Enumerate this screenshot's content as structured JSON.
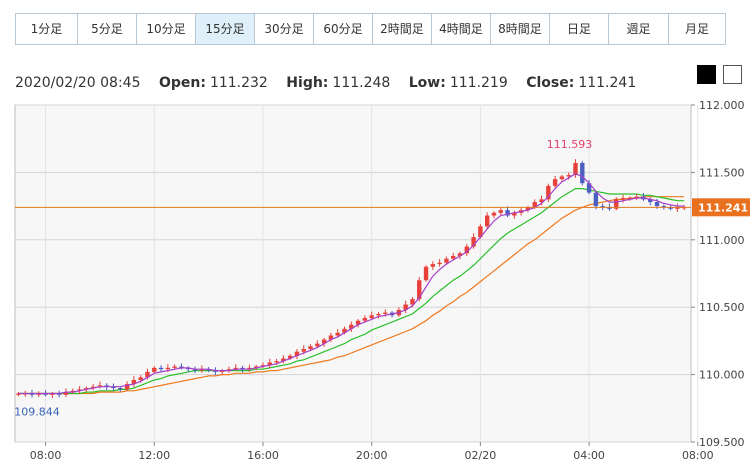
{
  "tabs": [
    {
      "label": "1分足",
      "width": 62,
      "active": false
    },
    {
      "label": "5分足",
      "width": 59,
      "active": false
    },
    {
      "label": "10分足",
      "width": 59,
      "active": false
    },
    {
      "label": "15分足",
      "width": 59,
      "active": true
    },
    {
      "label": "30分足",
      "width": 59,
      "active": false
    },
    {
      "label": "60分足",
      "width": 59,
      "active": false
    },
    {
      "label": "2時間足",
      "width": 59,
      "active": false
    },
    {
      "label": "4時間足",
      "width": 59,
      "active": false
    },
    {
      "label": "8時間足",
      "width": 59,
      "active": false
    },
    {
      "label": "日足",
      "width": 59,
      "active": false
    },
    {
      "label": "週足",
      "width": 60,
      "active": false
    },
    {
      "label": "月足",
      "width": 56,
      "active": false
    }
  ],
  "ohlc": {
    "datetime": "2020/02/20 08:45",
    "open_label": "Open:",
    "open": "111.232",
    "high_label": "High:",
    "high": "111.248",
    "low_label": "Low:",
    "low": "111.219",
    "close_label": "Close:",
    "close": "111.241"
  },
  "theme_toggle": {
    "dark_color": "#000000",
    "light_color": "#ffffff"
  },
  "chart_data": {
    "type": "candlestick",
    "instrument_timeframe": "15分足",
    "y_ticks": [
      "112.000",
      "111.500",
      "111.000",
      "110.500",
      "110.000",
      "109.500"
    ],
    "ylim": [
      109.5,
      112.0
    ],
    "x_ticks": [
      "08:00",
      "12:00",
      "16:00",
      "20:00",
      "02/20",
      "04:00",
      "08:00"
    ],
    "x_tick_positions": [
      4,
      20,
      36,
      52,
      68,
      84,
      100
    ],
    "current_price_label": "111.241",
    "current_price": 111.241,
    "high_annotation": {
      "label": "111.593",
      "index": 82,
      "value": 111.593
    },
    "low_annotation": {
      "label": "109.844",
      "index": 2,
      "value": 109.844
    },
    "colors": {
      "up": "#e8413c",
      "down": "#4a5fc1",
      "ma_short": "#a640c8",
      "ma_mid": "#2bbf2b",
      "ma_long": "#ee7a22",
      "price_line": "#e07a1f",
      "price_label_bg": "#e8701f",
      "high_text": "#e0406a",
      "low_text": "#3a64b8",
      "grid": "#d5d5d5",
      "plot_bg": "#f7f7f7"
    },
    "close": [
      109.86,
      109.86,
      109.85,
      109.86,
      109.85,
      109.86,
      109.85,
      109.87,
      109.88,
      109.89,
      109.9,
      109.91,
      109.92,
      109.91,
      109.9,
      109.89,
      109.93,
      109.96,
      109.98,
      110.02,
      110.05,
      110.04,
      110.05,
      110.06,
      110.05,
      110.04,
      110.03,
      110.04,
      110.03,
      110.02,
      110.03,
      110.04,
      110.05,
      110.04,
      110.05,
      110.06,
      110.07,
      110.09,
      110.1,
      110.12,
      110.14,
      110.17,
      110.19,
      110.21,
      110.23,
      110.26,
      110.29,
      110.31,
      110.34,
      110.37,
      110.4,
      110.42,
      110.44,
      110.45,
      110.46,
      110.44,
      110.48,
      110.52,
      110.56,
      110.7,
      110.8,
      110.82,
      110.83,
      110.86,
      110.88,
      110.9,
      110.95,
      111.02,
      111.1,
      111.18,
      111.2,
      111.22,
      111.18,
      111.2,
      111.22,
      111.24,
      111.28,
      111.3,
      111.4,
      111.45,
      111.47,
      111.48,
      111.57,
      111.42,
      111.35,
      111.25,
      111.24,
      111.23,
      111.3,
      111.31,
      111.31,
      111.32,
      111.3,
      111.28,
      111.25,
      111.24,
      111.23,
      111.24,
      111.241
    ],
    "ma_short": [
      109.86,
      109.86,
      109.86,
      109.86,
      109.86,
      109.86,
      109.86,
      109.87,
      109.87,
      109.88,
      109.89,
      109.9,
      109.91,
      109.91,
      109.91,
      109.91,
      109.92,
      109.93,
      109.95,
      109.98,
      110.01,
      110.02,
      110.03,
      110.04,
      110.05,
      110.05,
      110.04,
      110.04,
      110.04,
      110.03,
      110.03,
      110.03,
      110.04,
      110.04,
      110.04,
      110.05,
      110.06,
      110.07,
      110.08,
      110.1,
      110.12,
      110.14,
      110.16,
      110.18,
      110.2,
      110.23,
      110.26,
      110.28,
      110.31,
      110.34,
      110.37,
      110.39,
      110.41,
      110.43,
      110.44,
      110.45,
      110.46,
      110.48,
      110.51,
      110.57,
      110.65,
      110.73,
      110.78,
      110.82,
      110.85,
      110.88,
      110.91,
      110.96,
      111.02,
      111.08,
      111.14,
      111.18,
      111.19,
      111.2,
      111.21,
      111.22,
      111.24,
      111.27,
      111.32,
      111.38,
      111.43,
      111.46,
      111.49,
      111.47,
      111.42,
      111.36,
      111.31,
      111.28,
      111.28,
      111.29,
      111.3,
      111.31,
      111.31,
      111.3,
      111.29,
      111.27,
      111.26,
      111.25,
      111.25
    ],
    "ma_mid": [
      109.86,
      109.86,
      109.86,
      109.86,
      109.86,
      109.86,
      109.86,
      109.86,
      109.86,
      109.86,
      109.87,
      109.87,
      109.88,
      109.88,
      109.88,
      109.89,
      109.89,
      109.9,
      109.92,
      109.94,
      109.96,
      109.97,
      109.99,
      110.0,
      110.01,
      110.02,
      110.03,
      110.03,
      110.03,
      110.03,
      110.03,
      110.03,
      110.03,
      110.03,
      110.03,
      110.04,
      110.04,
      110.05,
      110.06,
      110.07,
      110.08,
      110.1,
      110.11,
      110.13,
      110.15,
      110.17,
      110.19,
      110.21,
      110.23,
      110.26,
      110.28,
      110.3,
      110.33,
      110.35,
      110.37,
      110.39,
      110.41,
      110.43,
      110.45,
      110.49,
      110.53,
      110.58,
      110.62,
      110.66,
      110.7,
      110.73,
      110.77,
      110.81,
      110.86,
      110.91,
      110.96,
      111.01,
      111.05,
      111.08,
      111.11,
      111.14,
      111.17,
      111.2,
      111.24,
      111.28,
      111.32,
      111.35,
      111.38,
      111.38,
      111.37,
      111.36,
      111.35,
      111.34,
      111.34,
      111.34,
      111.34,
      111.34,
      111.33,
      111.33,
      111.32,
      111.31,
      111.3,
      111.29,
      111.29
    ],
    "ma_long": [
      109.86,
      109.86,
      109.86,
      109.86,
      109.86,
      109.86,
      109.86,
      109.86,
      109.86,
      109.86,
      109.86,
      109.86,
      109.87,
      109.87,
      109.87,
      109.87,
      109.88,
      109.88,
      109.89,
      109.9,
      109.91,
      109.92,
      109.93,
      109.94,
      109.95,
      109.96,
      109.97,
      109.98,
      109.99,
      109.99,
      110.0,
      110.0,
      110.01,
      110.01,
      110.01,
      110.02,
      110.02,
      110.03,
      110.03,
      110.04,
      110.05,
      110.06,
      110.07,
      110.08,
      110.09,
      110.1,
      110.11,
      110.13,
      110.14,
      110.16,
      110.18,
      110.2,
      110.22,
      110.24,
      110.26,
      110.28,
      110.3,
      110.32,
      110.34,
      110.37,
      110.4,
      110.44,
      110.47,
      110.51,
      110.54,
      110.58,
      110.61,
      110.65,
      110.69,
      110.73,
      110.77,
      110.81,
      110.85,
      110.89,
      110.93,
      110.97,
      111.0,
      111.04,
      111.08,
      111.12,
      111.16,
      111.19,
      111.22,
      111.24,
      111.26,
      111.27,
      111.28,
      111.29,
      111.3,
      111.3,
      111.31,
      111.31,
      111.32,
      111.32,
      111.32,
      111.32,
      111.32,
      111.32,
      111.32
    ]
  }
}
